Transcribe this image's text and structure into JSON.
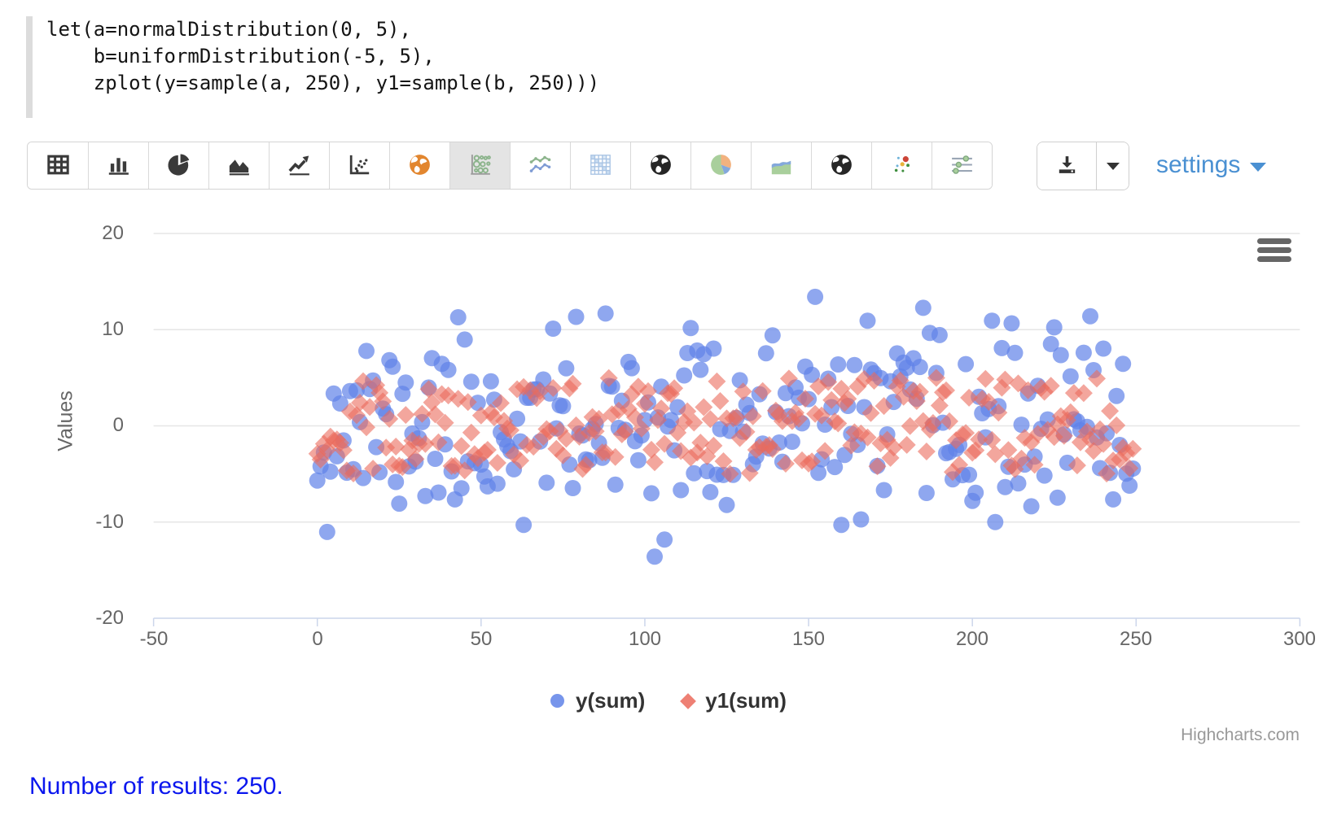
{
  "code": {
    "lines": [
      "let(a=normalDistribution(0, 5),",
      "    b=uniformDistribution(-5, 5),",
      "    zplot(y=sample(a, 250), y1=sample(b, 250)))"
    ]
  },
  "toolbar": {
    "chart_type_icons": [
      "table",
      "bar-chart",
      "pie-chart",
      "area-chart",
      "line-chart",
      "scatter-plot",
      "map-globe-orange",
      "bubble-chart",
      "multi-line-chart",
      "matrix-chart",
      "globe-dark",
      "pie-colored",
      "area-colored",
      "globe-dark-2",
      "scatter-colored",
      "sliders"
    ],
    "selected_icon": "bubble-chart",
    "selected_index": 7,
    "download_icon": "download-icon",
    "download_caret_icon": "caret-down-icon",
    "settings_label": "settings"
  },
  "chart_data": {
    "type": "scatter",
    "title": "",
    "xlabel": "",
    "ylabel": "Values",
    "xlim": [
      -50,
      300
    ],
    "ylim": [
      -20,
      20
    ],
    "xticks": [
      -50,
      0,
      50,
      100,
      150,
      200,
      250,
      300
    ],
    "yticks_top_to_bottom": [
      20,
      10,
      0,
      -10,
      -20
    ],
    "grid": "horizontal-only",
    "legend_position": "bottom-center",
    "watermark": "Highcharts.com",
    "axis_line_color": "#ccd6eb",
    "grid_color": "#e6e6e6",
    "series": [
      {
        "name": "y(sum)",
        "marker": "circle",
        "color": "#5f82e8",
        "opacity": 0.7,
        "marker_radius": 10,
        "count": 250,
        "x_range": [
          0,
          249
        ],
        "distribution": {
          "kind": "normal",
          "mean": 0,
          "stddev": 5
        },
        "seed": 11,
        "approx_y_extent": [
          -13,
          13.5
        ]
      },
      {
        "name": "y1(sum)",
        "marker": "diamond",
        "color": "#eb6a5c",
        "opacity": 0.6,
        "marker_radius": 11,
        "count": 250,
        "x_range": [
          0,
          249
        ],
        "distribution": {
          "kind": "uniform",
          "min": -5,
          "max": 5
        },
        "seed": 29,
        "approx_y_extent": [
          -5,
          5
        ]
      }
    ]
  },
  "footer": {
    "results_text": "Number of results: 250."
  }
}
